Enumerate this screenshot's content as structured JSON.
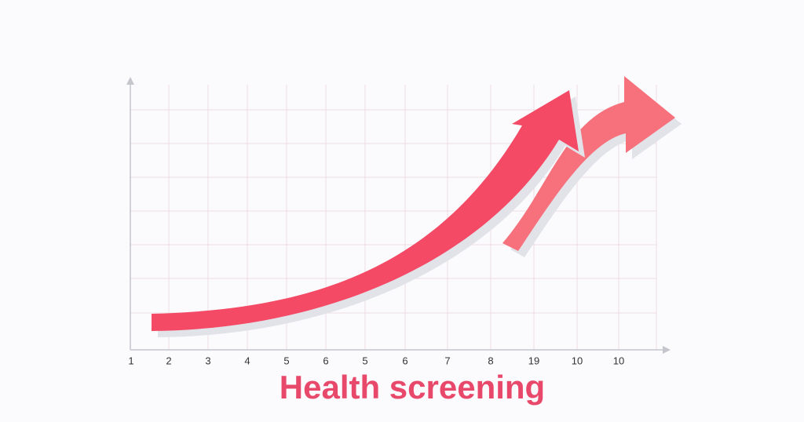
{
  "title": "Health screening",
  "x_labels": [
    "1",
    "2",
    "3",
    "4",
    "5",
    "6",
    "5",
    "6",
    "7",
    "8",
    "19",
    "10",
    "10"
  ]
}
